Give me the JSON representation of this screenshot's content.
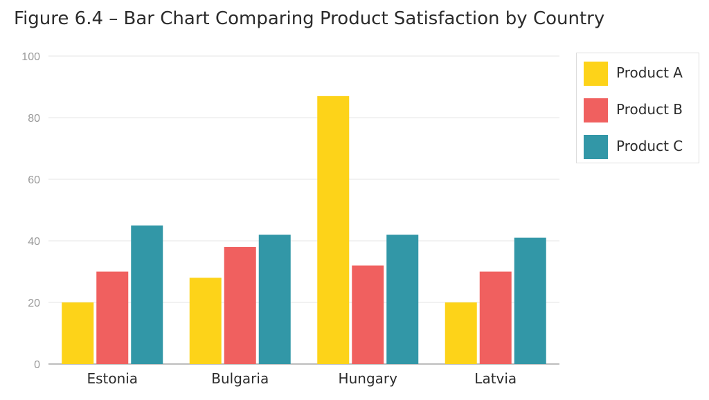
{
  "title": "Figure 6.4 – Bar Chart Comparing Product Satisfaction by Country",
  "chart_data": {
    "type": "bar",
    "title": "Figure 6.4 – Bar Chart Comparing Product Satisfaction by Country",
    "xlabel": "",
    "ylabel": "",
    "categories": [
      "Estonia",
      "Bulgaria",
      "Hungary",
      "Latvia"
    ],
    "series": [
      {
        "name": "Product A",
        "color": "#FDD319",
        "values": [
          20,
          28,
          87,
          20
        ]
      },
      {
        "name": "Product B",
        "color": "#F0605F",
        "values": [
          30,
          38,
          32,
          30
        ]
      },
      {
        "name": "Product C",
        "color": "#3297A7",
        "values": [
          45,
          42,
          42,
          41
        ]
      }
    ],
    "ylim": [
      0,
      100
    ],
    "yticks": [
      0,
      20,
      40,
      60,
      80,
      100
    ],
    "grid": true,
    "legend_position": "right"
  }
}
